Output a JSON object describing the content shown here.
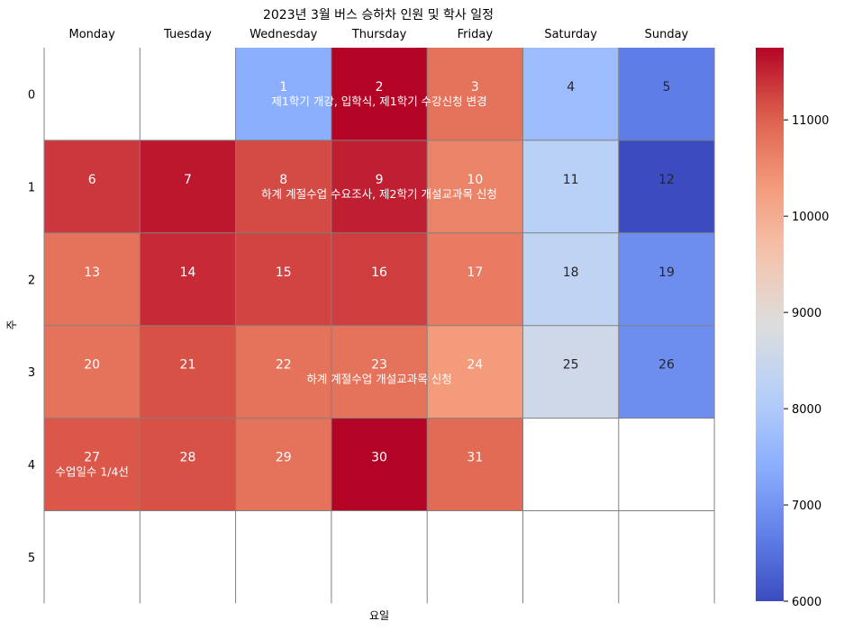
{
  "chart_data": {
    "type": "heatmap",
    "title": "2023년 3월 버스 승하차 인원 및 학사 일정",
    "xlabel": "요일",
    "ylabel": "주",
    "x_categories": [
      "Monday",
      "Tuesday",
      "Wednesday",
      "Thursday",
      "Friday",
      "Saturday",
      "Sunday"
    ],
    "y_categories": [
      "0",
      "1",
      "2",
      "3",
      "4",
      "5"
    ],
    "color_scale": {
      "cmap": "coolwarm",
      "min": 6000,
      "max": 11750,
      "ticks": [
        6000,
        7000,
        8000,
        9000,
        10000,
        11000
      ]
    },
    "cells": [
      {
        "week": 0,
        "weekday": 2,
        "day": "1",
        "value": 7400
      },
      {
        "week": 0,
        "weekday": 3,
        "day": "2",
        "value": 11750
      },
      {
        "week": 0,
        "weekday": 4,
        "day": "3",
        "value": 10800
      },
      {
        "week": 0,
        "weekday": 5,
        "day": "4",
        "value": 7700
      },
      {
        "week": 0,
        "weekday": 6,
        "day": "5",
        "value": 6650
      },
      {
        "week": 1,
        "weekday": 0,
        "day": "6",
        "value": 11350
      },
      {
        "week": 1,
        "weekday": 1,
        "day": "7",
        "value": 11600
      },
      {
        "week": 1,
        "weekday": 2,
        "day": "8",
        "value": 11200
      },
      {
        "week": 1,
        "weekday": 3,
        "day": "9",
        "value": 11550
      },
      {
        "week": 1,
        "weekday": 4,
        "day": "10",
        "value": 10600
      },
      {
        "week": 1,
        "weekday": 5,
        "day": "11",
        "value": 8200
      },
      {
        "week": 1,
        "weekday": 6,
        "day": "12",
        "value": 6000
      },
      {
        "week": 2,
        "weekday": 0,
        "day": "13",
        "value": 10800
      },
      {
        "week": 2,
        "weekday": 1,
        "day": "14",
        "value": 11450
      },
      {
        "week": 2,
        "weekday": 2,
        "day": "15",
        "value": 11250
      },
      {
        "week": 2,
        "weekday": 3,
        "day": "16",
        "value": 11300
      },
      {
        "week": 2,
        "weekday": 4,
        "day": "17",
        "value": 10700
      },
      {
        "week": 2,
        "weekday": 5,
        "day": "18",
        "value": 8300
      },
      {
        "week": 2,
        "weekday": 6,
        "day": "19",
        "value": 6900
      },
      {
        "week": 3,
        "weekday": 0,
        "day": "20",
        "value": 10800
      },
      {
        "week": 3,
        "weekday": 1,
        "day": "21",
        "value": 11150
      },
      {
        "week": 3,
        "weekday": 2,
        "day": "22",
        "value": 10800
      },
      {
        "week": 3,
        "weekday": 3,
        "day": "23",
        "value": 10800
      },
      {
        "week": 3,
        "weekday": 4,
        "day": "24",
        "value": 10300
      },
      {
        "week": 3,
        "weekday": 5,
        "day": "25",
        "value": 8600
      },
      {
        "week": 3,
        "weekday": 6,
        "day": "26",
        "value": 6900
      },
      {
        "week": 4,
        "weekday": 0,
        "day": "27",
        "value": 11100
      },
      {
        "week": 4,
        "weekday": 1,
        "day": "28",
        "value": 11150
      },
      {
        "week": 4,
        "weekday": 2,
        "day": "29",
        "value": 10800
      },
      {
        "week": 4,
        "weekday": 3,
        "day": "30",
        "value": 11750
      },
      {
        "week": 4,
        "weekday": 4,
        "day": "31",
        "value": 10900
      }
    ],
    "annotations": [
      {
        "week": 0,
        "weekday": 3,
        "text": "제1학기 개강, 입학식, 제1학기 수강신청 변경"
      },
      {
        "week": 1,
        "weekday": 3,
        "text": "하계 계절수업 수요조사, 제2학기 개설교과목 신청"
      },
      {
        "week": 3,
        "weekday": 3,
        "text": "하계 계절수업 개설교과목 신청"
      },
      {
        "week": 4,
        "weekday": 0,
        "text": "수업일수 1/4선"
      }
    ]
  }
}
